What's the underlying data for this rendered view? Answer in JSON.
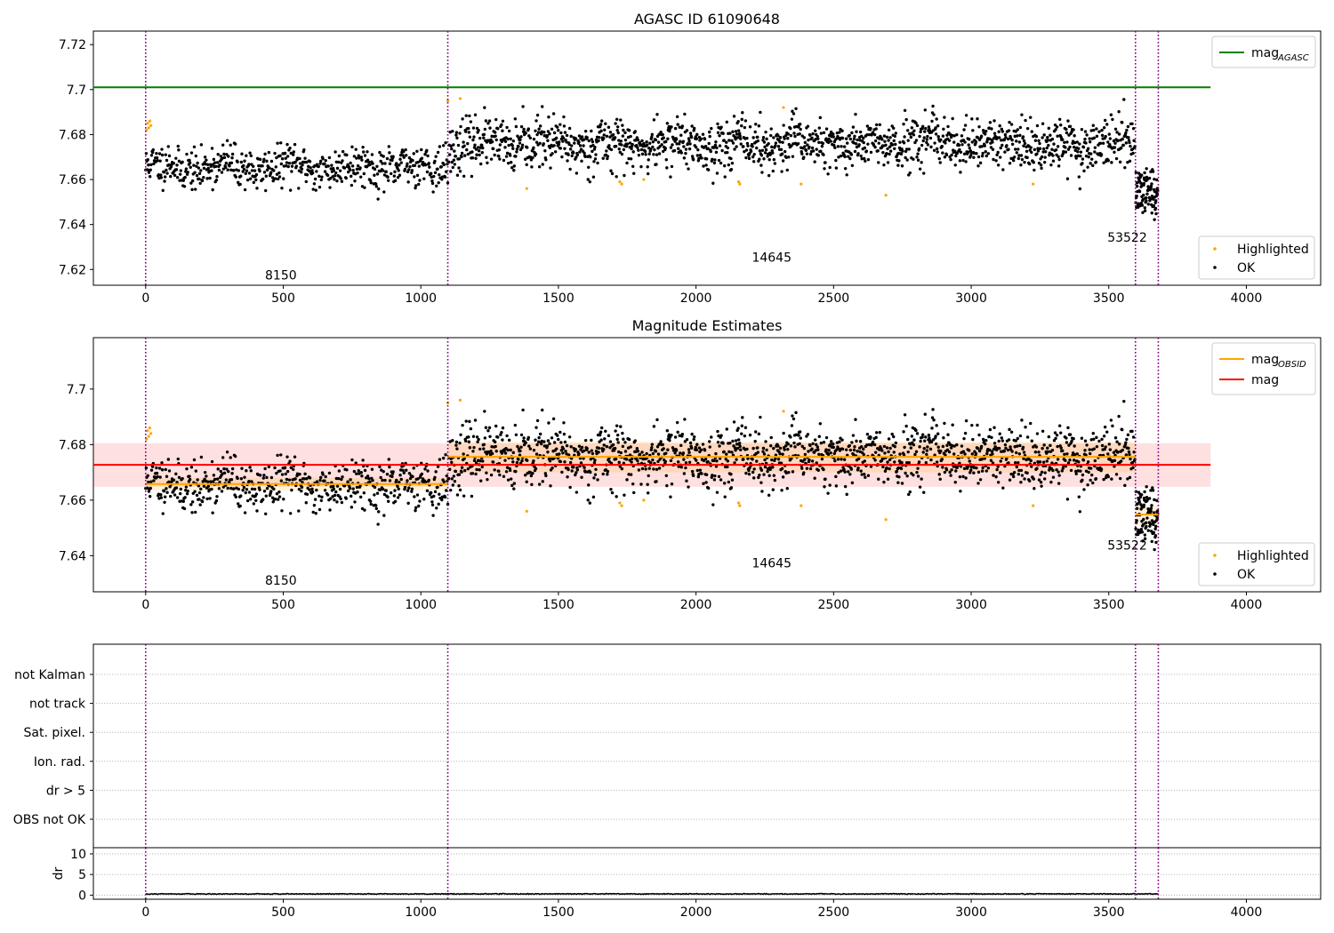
{
  "chart_data": [
    {
      "type": "scatter",
      "title": "AGASC ID 61090648",
      "xlim": [
        -190,
        4270
      ],
      "ylim": [
        7.613,
        7.726
      ],
      "xticks": [
        0,
        500,
        1000,
        1500,
        2000,
        2500,
        3000,
        3500,
        4000
      ],
      "yticks": [
        7.62,
        7.64,
        7.66,
        7.68,
        7.7,
        7.72
      ],
      "ytick_labels": [
        "7.62",
        "7.64",
        "7.66",
        "7.68",
        "7.70",
        "7.72"
      ],
      "vlines": [
        0,
        1098,
        3597,
        3680
      ],
      "vline_color": "#800080",
      "obsid_labels": [
        {
          "text": "8150",
          "x": 549,
          "y": 7.6155
        },
        {
          "text": "14645",
          "x": 2347,
          "y": 7.6235
        },
        {
          "text": "53522",
          "x": 3639,
          "y": 7.6323
        }
      ],
      "lines": [
        {
          "name": "mag_AGASC",
          "legend": "mag",
          "legend_sub": "AGASC",
          "color": "#008000",
          "x": [
            -190,
            3870
          ],
          "y": [
            7.701,
            7.701
          ]
        }
      ],
      "series": [
        {
          "name": "Highlighted",
          "color": "#FFA500",
          "points": [
            [
              3,
              7.682
            ],
            [
              7,
              7.685
            ],
            [
              11,
              7.683
            ],
            [
              15,
              7.686
            ],
            [
              19,
              7.684
            ],
            [
              1098,
              7.695
            ],
            [
              1143,
              7.696
            ],
            [
              1385,
              7.656
            ],
            [
              1723,
              7.659
            ],
            [
              1730,
              7.658
            ],
            [
              1810,
              7.66
            ],
            [
              2155,
              7.659
            ],
            [
              2159,
              7.658
            ],
            [
              2318,
              7.692
            ],
            [
              2382,
              7.658
            ],
            [
              2690,
              7.653
            ],
            [
              3225,
              7.658
            ]
          ]
        },
        {
          "name": "OK",
          "color": "#000000",
          "segments": [
            {
              "x0": 0,
              "x1": 1098,
              "n": 560,
              "mean": 7.6655,
              "std": 0.0045,
              "seed": 11
            },
            {
              "x0": 1100,
              "x1": 3595,
              "n": 1500,
              "mean": 7.6755,
              "std": 0.0055,
              "seed": 23
            },
            {
              "x0": 3598,
              "x1": 3678,
              "n": 95,
              "mean": 7.6555,
              "std": 0.0045,
              "seed": 37
            }
          ]
        }
      ],
      "legend_top": "top-right",
      "legend_bottom": "bottom-right"
    },
    {
      "type": "scatter",
      "title": "Magnitude Estimates",
      "xlim": [
        -190,
        4270
      ],
      "ylim": [
        7.627,
        7.7185
      ],
      "xticks": [
        0,
        500,
        1000,
        1500,
        2000,
        2500,
        3000,
        3500,
        4000
      ],
      "yticks": [
        7.64,
        7.66,
        7.68,
        7.7
      ],
      "ytick_labels": [
        "7.64",
        "7.66",
        "7.68",
        "7.70"
      ],
      "vlines": [
        0,
        1098,
        3597,
        3680
      ],
      "vline_color": "#800080",
      "obsid_labels": [
        {
          "text": "8150",
          "x": 549,
          "y": 7.6295
        },
        {
          "text": "14645",
          "x": 2347,
          "y": 7.6358
        },
        {
          "text": "53522",
          "x": 3639,
          "y": 7.6422
        }
      ],
      "band": {
        "color": "#FF0000",
        "opacity": 0.12,
        "x": [
          -190,
          3870
        ],
        "ymin": 7.6648,
        "ymax": 7.6805
      },
      "lines": [
        {
          "name": "mag",
          "legend": "mag",
          "color": "#FF0000",
          "x": [
            -190,
            3870
          ],
          "y": [
            7.6727,
            7.6727
          ]
        },
        {
          "name": "mag_OBSID_8150",
          "color": "#FFA500",
          "x": [
            0,
            1098
          ],
          "y": [
            7.6658,
            7.6658
          ]
        },
        {
          "name": "mag_OBSID_14645",
          "legend": "mag",
          "legend_sub": "OBSID",
          "color": "#FFA500",
          "x": [
            1100,
            3597
          ],
          "y": [
            7.6756,
            7.6756
          ]
        },
        {
          "name": "mag_OBSID_53522",
          "color": "#FFA500",
          "x": [
            3597,
            3680
          ],
          "y": [
            7.6548,
            7.6548
          ]
        }
      ],
      "obsid_bands": [
        {
          "color": "#FFA500",
          "opacity": 0.15,
          "x": [
            0,
            1098
          ],
          "ymin": 7.6635,
          "ymax": 7.668
        },
        {
          "color": "#FFA500",
          "opacity": 0.15,
          "x": [
            1100,
            3597
          ],
          "ymin": 7.67,
          "ymax": 7.681
        },
        {
          "color": "#FFA500",
          "opacity": 0.15,
          "x": [
            3597,
            3680
          ],
          "ymin": 7.651,
          "ymax": 7.658
        }
      ],
      "series": [
        {
          "name": "Highlighted",
          "color": "#FFA500",
          "ref": 0
        },
        {
          "name": "OK",
          "color": "#000000",
          "ref": 0
        }
      ],
      "legend_top": "top-right",
      "legend_bottom": "bottom-right"
    },
    {
      "type": "scatter",
      "title": "",
      "xlim": [
        -190,
        4270
      ],
      "flag_labels": [
        "not Kalman",
        "not track",
        "Sat. pixel.",
        "Ion. rad.",
        "dr > 5",
        "OBS not OK"
      ],
      "vlines": [
        0,
        1098,
        3597,
        3680
      ],
      "vline_color": "#800080",
      "grid": true,
      "grid_style": "dotted"
    },
    {
      "type": "line",
      "title": "",
      "ylabel": "dr",
      "xlim": [
        -190,
        4270
      ],
      "ylim": [
        -1,
        11.5
      ],
      "xticks": [
        0,
        500,
        1000,
        1500,
        2000,
        2500,
        3000,
        3500,
        4000
      ],
      "yticks": [
        0,
        5,
        10
      ],
      "vlines": [
        0,
        1098,
        3597,
        3680
      ],
      "vline_color": "#800080",
      "dr_level": 0.2,
      "grid": true
    }
  ]
}
